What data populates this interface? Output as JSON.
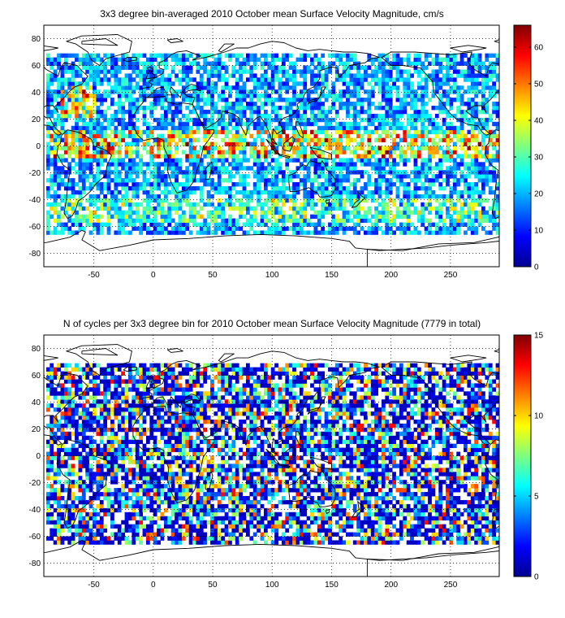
{
  "chart_data": [
    {
      "type": "heatmap",
      "title": "3x3 degree bin-averaged 2010 October mean Surface Velocity Magnitude, cm/s",
      "xlabel": "",
      "ylabel": "",
      "xlim": [
        -92,
        291
      ],
      "ylim": [
        -90,
        90
      ],
      "xticks": [
        -50,
        0,
        50,
        100,
        150,
        200,
        250
      ],
      "yticks": [
        80,
        60,
        40,
        20,
        0,
        -20,
        -40,
        -60,
        -80
      ],
      "colorbar": {
        "range": [
          0,
          66
        ],
        "ticks": [
          0,
          10,
          20,
          30,
          40,
          50,
          60
        ]
      },
      "bin_size_deg": 3,
      "grid": true,
      "colormap": "jet",
      "coastlines": true
    },
    {
      "type": "heatmap",
      "title": "N of cycles per 3x3 degree bin for 2010 October mean Surface Velocity Magnitude (7779 in total)",
      "xlabel": "",
      "ylabel": "",
      "xlim": [
        -92,
        291
      ],
      "ylim": [
        -90,
        90
      ],
      "xticks": [
        -50,
        0,
        50,
        100,
        150,
        200,
        250
      ],
      "yticks": [
        80,
        60,
        40,
        20,
        0,
        -20,
        -40,
        -60,
        -80
      ],
      "colorbar": {
        "range": [
          0,
          15
        ],
        "ticks": [
          0,
          5,
          10,
          15
        ]
      },
      "total_cycles": 7779,
      "bin_size_deg": 3,
      "grid": true,
      "colormap": "jet",
      "coastlines": true
    }
  ]
}
